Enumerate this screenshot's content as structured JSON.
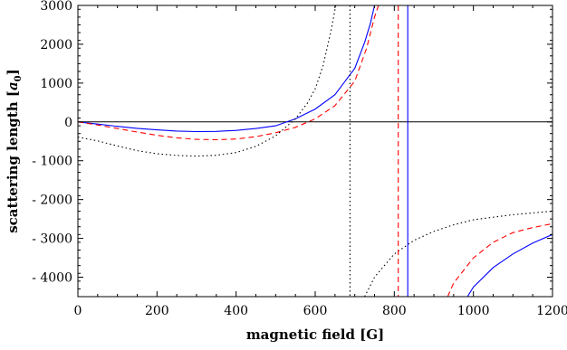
{
  "chart_data": {
    "type": "line",
    "xlabel": "magnetic field [G]",
    "ylabel_main": "scattering length [",
    "ylabel_var": "a",
    "ylabel_sub": "0",
    "ylabel_end": "]",
    "xlim": [
      0,
      1200
    ],
    "ylim": [
      -4500,
      3000
    ],
    "xticks": [
      0,
      200,
      400,
      600,
      800,
      1000,
      1200
    ],
    "xtick_labels": [
      "0",
      "200",
      "400",
      "600",
      "800",
      "1000",
      "1200"
    ],
    "yticks": [
      3000,
      2000,
      1000,
      0,
      -1000,
      -2000,
      -3000,
      -4000
    ],
    "ytick_labels": [
      "3000",
      "2000",
      "1000",
      "0",
      "- 1000",
      "- 2000",
      "- 3000",
      "- 4000"
    ],
    "zero_line": 0,
    "series": [
      {
        "color": "#0000ff",
        "style": "solid",
        "asymptote": 834,
        "low": [
          [
            0,
            0
          ],
          [
            50,
            -55
          ],
          [
            100,
            -115
          ],
          [
            150,
            -165
          ],
          [
            200,
            -205
          ],
          [
            250,
            -235
          ],
          [
            300,
            -250
          ],
          [
            350,
            -245
          ],
          [
            400,
            -220
          ],
          [
            450,
            -170
          ],
          [
            500,
            -100
          ],
          [
            550,
            80
          ],
          [
            600,
            330
          ],
          [
            650,
            700
          ],
          [
            700,
            1380
          ],
          [
            725,
            2050
          ],
          [
            740,
            2550
          ],
          [
            750,
            3000
          ]
        ],
        "high": [
          [
            985,
            -4500
          ],
          [
            1000,
            -4250
          ],
          [
            1050,
            -3750
          ],
          [
            1100,
            -3400
          ],
          [
            1150,
            -3120
          ],
          [
            1200,
            -2900
          ]
        ]
      },
      {
        "color": "#ff0000",
        "style": "dashed",
        "asymptote": 810,
        "low": [
          [
            0,
            0
          ],
          [
            50,
            -80
          ],
          [
            100,
            -170
          ],
          [
            150,
            -260
          ],
          [
            200,
            -345
          ],
          [
            250,
            -410
          ],
          [
            300,
            -450
          ],
          [
            350,
            -460
          ],
          [
            400,
            -440
          ],
          [
            450,
            -380
          ],
          [
            500,
            -280
          ],
          [
            550,
            -140
          ],
          [
            600,
            80
          ],
          [
            650,
            420
          ],
          [
            700,
            1050
          ],
          [
            730,
            1900
          ],
          [
            750,
            2700
          ],
          [
            760,
            3000
          ]
        ],
        "high": [
          [
            935,
            -4500
          ],
          [
            950,
            -4150
          ],
          [
            1000,
            -3500
          ],
          [
            1050,
            -3100
          ],
          [
            1100,
            -2850
          ],
          [
            1150,
            -2720
          ],
          [
            1200,
            -2620
          ]
        ]
      },
      {
        "color": "#000000",
        "style": "dotted",
        "asymptote": 688,
        "low": [
          [
            0,
            -390
          ],
          [
            50,
            -490
          ],
          [
            100,
            -620
          ],
          [
            150,
            -740
          ],
          [
            200,
            -820
          ],
          [
            250,
            -865
          ],
          [
            300,
            -880
          ],
          [
            350,
            -860
          ],
          [
            400,
            -790
          ],
          [
            450,
            -630
          ],
          [
            500,
            -360
          ],
          [
            550,
            80
          ],
          [
            580,
            480
          ],
          [
            600,
            850
          ],
          [
            620,
            1450
          ],
          [
            640,
            2350
          ],
          [
            652,
            3000
          ]
        ],
        "high": [
          [
            725,
            -4500
          ],
          [
            750,
            -4000
          ],
          [
            800,
            -3400
          ],
          [
            850,
            -3050
          ],
          [
            900,
            -2820
          ],
          [
            950,
            -2650
          ],
          [
            1000,
            -2520
          ],
          [
            1100,
            -2390
          ],
          [
            1200,
            -2300
          ]
        ]
      }
    ]
  }
}
